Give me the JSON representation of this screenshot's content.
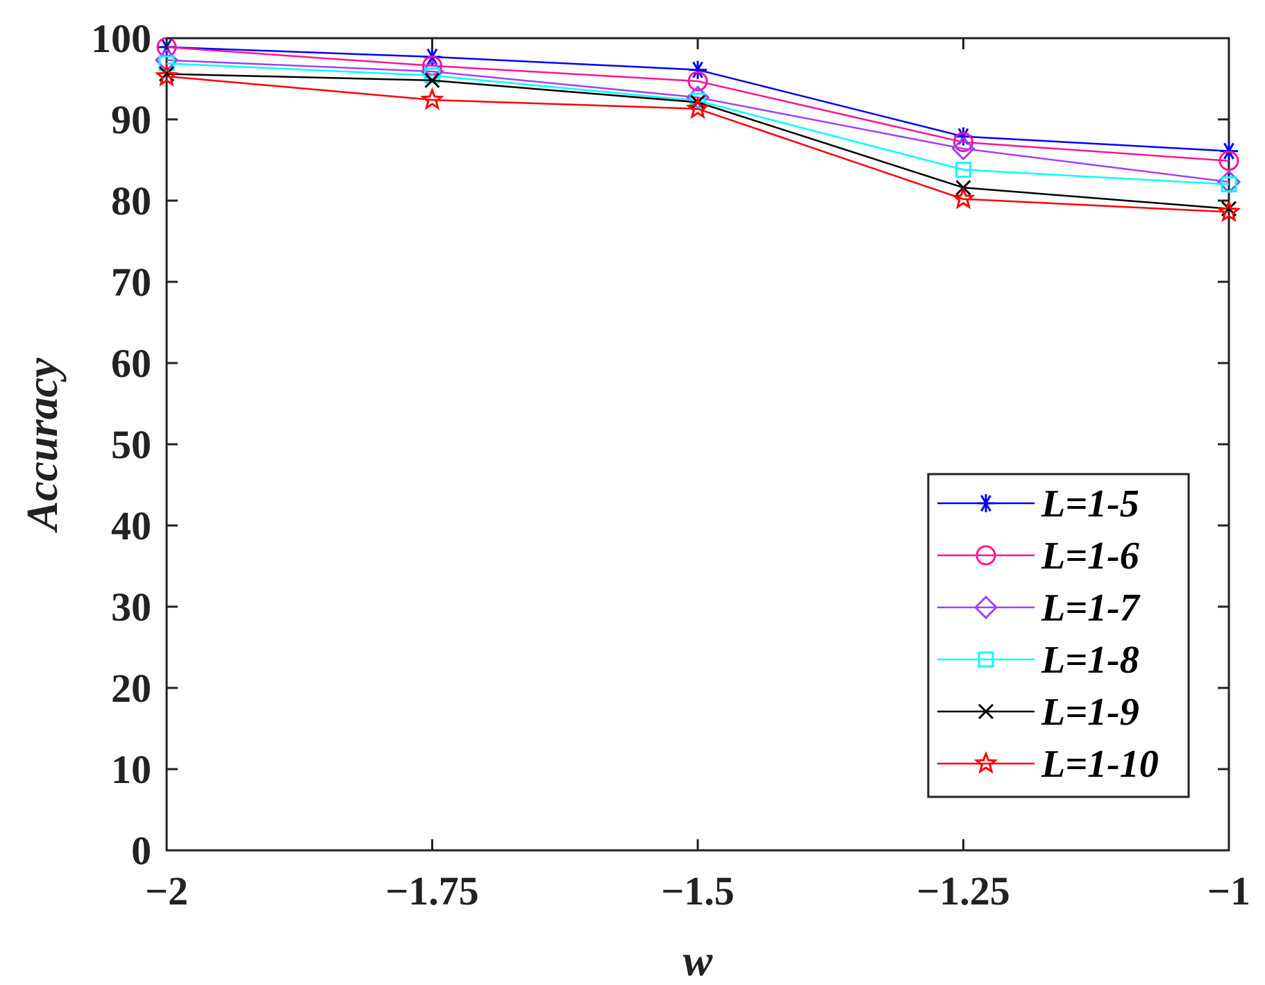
{
  "chart_data": {
    "type": "line",
    "title": "",
    "xlabel": "w",
    "ylabel": "Accuracy",
    "x": [
      -2,
      -1.75,
      -1.5,
      -1.25,
      -1
    ],
    "xlim": [
      -2,
      -1
    ],
    "ylim": [
      0,
      100
    ],
    "xticks": [
      {
        "value": -2,
        "label": "−2"
      },
      {
        "value": -1.75,
        "label": "−1.75"
      },
      {
        "value": -1.5,
        "label": "−1.5"
      },
      {
        "value": -1.25,
        "label": "−1.25"
      },
      {
        "value": -1,
        "label": "−1"
      }
    ],
    "yticks": [
      {
        "value": 0,
        "label": "0"
      },
      {
        "value": 10,
        "label": "10"
      },
      {
        "value": 20,
        "label": "20"
      },
      {
        "value": 30,
        "label": "30"
      },
      {
        "value": 40,
        "label": "40"
      },
      {
        "value": 50,
        "label": "50"
      },
      {
        "value": 60,
        "label": "60"
      },
      {
        "value": 70,
        "label": "70"
      },
      {
        "value": 80,
        "label": "80"
      },
      {
        "value": 90,
        "label": "90"
      },
      {
        "value": 100,
        "label": "100"
      }
    ],
    "grid": false,
    "legend_position": "lower-right",
    "series": [
      {
        "name": "L=1-5",
        "color": "#0000ff",
        "marker": "asterisk",
        "values": [
          98.9,
          97.7,
          96.1,
          87.9,
          86.1
        ]
      },
      {
        "name": "L=1-6",
        "color": "#ff1493",
        "marker": "circle",
        "values": [
          98.9,
          96.6,
          94.7,
          87.2,
          84.9
        ]
      },
      {
        "name": "L=1-7",
        "color": "#a040ff",
        "marker": "diamond",
        "values": [
          97.3,
          95.9,
          92.7,
          86.4,
          82.3
        ]
      },
      {
        "name": "L=1-8",
        "color": "#00ffff",
        "marker": "square",
        "values": [
          96.9,
          95.4,
          92.3,
          83.8,
          82.0
        ]
      },
      {
        "name": "L=1-9",
        "color": "#000000",
        "marker": "x",
        "values": [
          95.6,
          94.8,
          92.1,
          81.6,
          79.0
        ]
      },
      {
        "name": "L=1-10",
        "color": "#ff0000",
        "marker": "star",
        "values": [
          95.3,
          92.4,
          91.3,
          80.2,
          78.6
        ]
      }
    ]
  }
}
